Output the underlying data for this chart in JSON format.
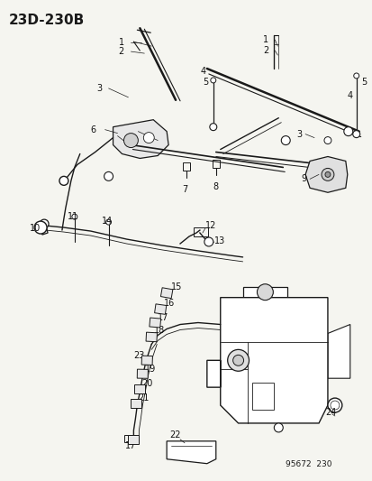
{
  "title": "23D-230B",
  "footer": "95672  230",
  "bg_color": "#f5f5f0",
  "line_color": "#1a1a1a",
  "label_color": "#111111",
  "title_fontsize": 11,
  "label_fontsize": 7,
  "fig_width": 4.14,
  "fig_height": 5.33,
  "dpi": 100
}
